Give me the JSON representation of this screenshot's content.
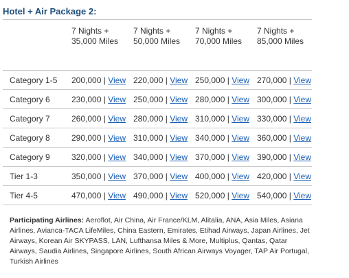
{
  "title": "Hotel + Air Package 2:",
  "columns": [
    {
      "line1": "7 Nights +",
      "line2": "35,000 Miles"
    },
    {
      "line1": "7 Nights +",
      "line2": "50,000 Miles"
    },
    {
      "line1": "7 Nights +",
      "line2": "70,000 Miles"
    },
    {
      "line1": "7 Nights +",
      "line2": "85,000 Miles"
    }
  ],
  "separator": "|",
  "link_label": "View",
  "rows": [
    {
      "label": "Category 1-5",
      "values": [
        "200,000",
        "220,000",
        "250,000",
        "270,000"
      ]
    },
    {
      "label": "Category 6",
      "values": [
        "230,000",
        "250,000",
        "280,000",
        "300,000"
      ]
    },
    {
      "label": "Category 7",
      "values": [
        "260,000",
        "280,000",
        "310,000",
        "330,000"
      ]
    },
    {
      "label": "Category 8",
      "values": [
        "290,000",
        "310,000",
        "340,000",
        "360,000"
      ]
    },
    {
      "label": "Category 9",
      "values": [
        "320,000",
        "340,000",
        "370,000",
        "390,000"
      ]
    },
    {
      "label": "Tier 1-3",
      "values": [
        "350,000",
        "370,000",
        "400,000",
        "420,000"
      ]
    },
    {
      "label": "Tier 4-5",
      "values": [
        "470,000",
        "490,000",
        "520,000",
        "540,000"
      ]
    }
  ],
  "airlines": {
    "label": "Participating Airlines:",
    "text": "Aeroflot, Air China, Air France/KLM, Alitalia, ANA, Asia Miles, Asiana Airlines, Avianca-TACA LifeMiles, China Eastern, Emirates, Etihad Airways, Japan Airlines, Jet Airways, Korean Air SKYPASS, LAN, Lufthansa Miles & More, Multiplus, Qantas, Qatar Airways, Saudia Airlines, Singapore Airlines, South African Airways Voyager, TAP Air Portugal, Turkish Airlines"
  }
}
